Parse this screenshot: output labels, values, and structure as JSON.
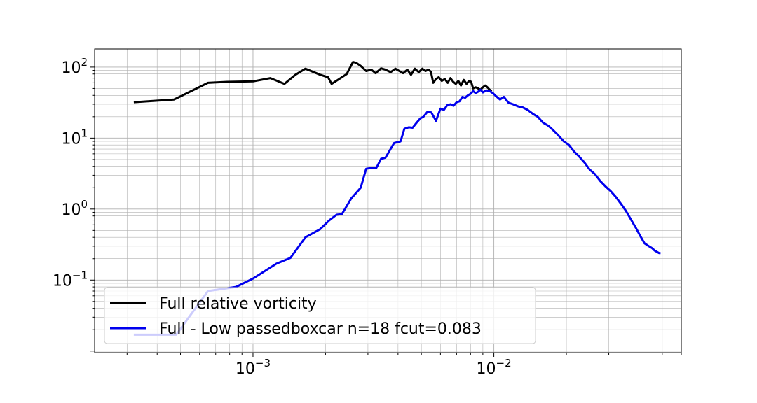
{
  "chart_data": {
    "type": "line",
    "title": "",
    "xlabel": "",
    "ylabel": "",
    "x_scale": "log",
    "y_scale": "log",
    "xlim": [
      0.00022,
      0.06
    ],
    "ylim": [
      0.0095,
      180
    ],
    "grid": true,
    "grid_minor": true,
    "legend_position": "lower-left",
    "x_ticks": [
      {
        "value": 0.001,
        "mantissa": "10",
        "exponent": "−3"
      },
      {
        "value": 0.01,
        "mantissa": "10",
        "exponent": "−2"
      }
    ],
    "y_ticks": [
      {
        "value": 0.1,
        "mantissa": "10",
        "exponent": "−1"
      },
      {
        "value": 1,
        "mantissa": "10",
        "exponent": "0"
      },
      {
        "value": 10,
        "mantissa": "10",
        "exponent": "1"
      },
      {
        "value": 100,
        "mantissa": "10",
        "exponent": "2"
      }
    ],
    "series": [
      {
        "name": "Full relative vorticity",
        "color": "#000000",
        "x": [
          0.00032,
          0.00047,
          0.00065,
          0.00078,
          0.001,
          0.00118,
          0.00135,
          0.0015,
          0.00165,
          0.0019,
          0.00205,
          0.00212,
          0.00228,
          0.00245,
          0.0026,
          0.00268,
          0.0028,
          0.00295,
          0.0031,
          0.00323,
          0.0034,
          0.00355,
          0.00373,
          0.0039,
          0.00405,
          0.0042,
          0.00437,
          0.00453,
          0.0047,
          0.00488,
          0.00505,
          0.0052,
          0.00535,
          0.00548,
          0.0056,
          0.00575,
          0.0059,
          0.00608,
          0.00625,
          0.00643,
          0.0066,
          0.00678,
          0.00695,
          0.00712,
          0.0073,
          0.0075,
          0.0077,
          0.0079,
          0.00805,
          0.0082,
          0.0084,
          0.0086,
          0.0088,
          0.009,
          0.0092,
          0.0094,
          0.0096,
          0.0098
        ],
        "y": [
          32,
          35,
          60,
          62,
          63,
          70,
          58,
          78,
          95,
          78,
          72,
          58,
          68,
          80,
          118,
          115,
          104,
          88,
          92,
          82,
          96,
          92,
          85,
          95,
          88,
          82,
          92,
          78,
          95,
          85,
          95,
          88,
          92,
          86,
          60,
          68,
          72,
          64,
          68,
          60,
          70,
          62,
          58,
          64,
          55,
          66,
          58,
          64,
          62,
          50,
          52,
          50,
          48,
          52,
          55,
          52,
          48,
          46
        ]
      },
      {
        "name": "Full - Low passedboxcar n=18 fcut=0.083",
        "color": "#0000ee",
        "x": [
          0.00032,
          0.00048,
          0.00065,
          0.00085,
          0.001,
          0.00125,
          0.00143,
          0.00165,
          0.0019,
          0.00207,
          0.00222,
          0.00234,
          0.00256,
          0.0028,
          0.00295,
          0.0031,
          0.00325,
          0.0034,
          0.00355,
          0.00385,
          0.0041,
          0.00425,
          0.00443,
          0.0046,
          0.00478,
          0.00495,
          0.0051,
          0.0053,
          0.0055,
          0.00575,
          0.006,
          0.0062,
          0.0064,
          0.0066,
          0.0068,
          0.007,
          0.0072,
          0.0074,
          0.0076,
          0.0078,
          0.008,
          0.0082,
          0.0084,
          0.0086,
          0.0088,
          0.009,
          0.0093,
          0.0096,
          0.0099,
          0.0102,
          0.0106,
          0.011,
          0.0115,
          0.012,
          0.0126,
          0.0132,
          0.0138,
          0.0145,
          0.0152,
          0.016,
          0.0168,
          0.0176,
          0.0185,
          0.0195,
          0.0205,
          0.0215,
          0.0226,
          0.0238,
          0.025,
          0.0263,
          0.0276,
          0.029,
          0.0305,
          0.032,
          0.0336,
          0.0353,
          0.037,
          0.0388,
          0.0405,
          0.0422,
          0.044,
          0.0455,
          0.0465,
          0.0475,
          0.0485,
          0.0492
        ],
        "y": [
          0.017,
          0.017,
          0.07,
          0.08,
          0.105,
          0.17,
          0.205,
          0.4,
          0.52,
          0.69,
          0.83,
          0.85,
          1.42,
          2.0,
          3.7,
          3.8,
          3.8,
          5.1,
          5.3,
          8.5,
          9.0,
          13.5,
          14.2,
          14.0,
          16.5,
          19.0,
          20.0,
          23.5,
          23.0,
          17.5,
          26.0,
          25.0,
          29.0,
          30.0,
          28.5,
          32.0,
          33.0,
          38.0,
          37.0,
          40.0,
          42.0,
          46.0,
          43.0,
          45.0,
          48.0,
          44.0,
          47.0,
          46.0,
          43.0,
          39.0,
          35.0,
          38.0,
          31.5,
          30.0,
          28.0,
          27.0,
          25.0,
          22.0,
          20.0,
          16.5,
          15.0,
          13.0,
          11.0,
          9.0,
          8.0,
          6.5,
          5.5,
          4.5,
          3.6,
          3.1,
          2.5,
          2.1,
          1.8,
          1.5,
          1.2,
          0.95,
          0.72,
          0.55,
          0.42,
          0.33,
          0.3,
          0.28,
          0.26,
          0.25,
          0.24,
          0.24
        ]
      }
    ]
  }
}
